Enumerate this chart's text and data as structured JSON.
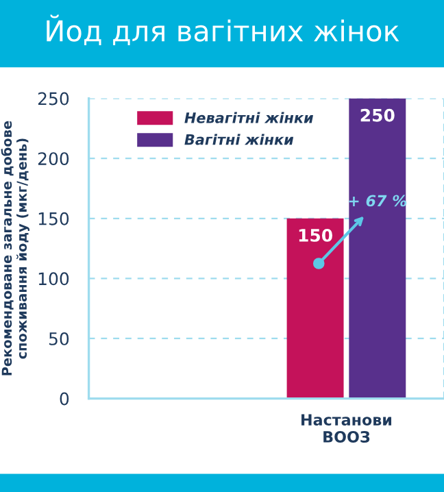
{
  "chart_data": {
    "type": "bar",
    "title": "Йод для вагітних жінок",
    "ylabel": "Рекомендоване загальне добове\nспоживання йоду (мкг/день)",
    "categories": [
      "Настанови\nВООЗ"
    ],
    "series": [
      {
        "name": "Невагітні жінки",
        "color": "#c4125a",
        "values": [
          150
        ]
      },
      {
        "name": "Вагітні жінки",
        "color": "#58308c",
        "values": [
          250
        ]
      }
    ],
    "ylim": [
      0,
      250
    ],
    "yticks": [
      0,
      50,
      100,
      150,
      200,
      250
    ],
    "grid": "y",
    "legend": "top left",
    "data_labels": true,
    "annotations": [
      "+ 67 %"
    ]
  }
}
